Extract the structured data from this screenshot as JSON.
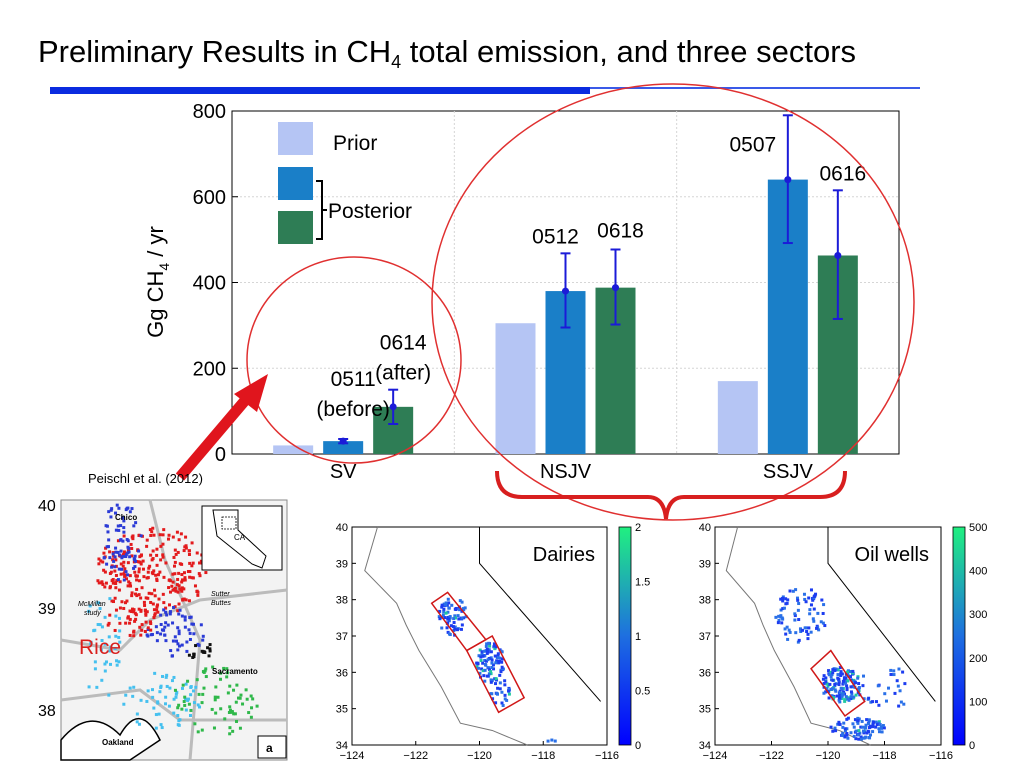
{
  "slide": {
    "title_main": "Preliminary Results in CH",
    "title_sub": "4",
    "title_rest": " total emission, and three sectors"
  },
  "chart_data": [
    {
      "type": "bar",
      "categories": [
        "SV",
        "NSJV",
        "SSJV"
      ],
      "ylabel_main": "Gg CH",
      "ylabel_sub": "4",
      "ylabel_rest": " / yr",
      "ylim": [
        0,
        800
      ],
      "yticks": [
        "0",
        "200",
        "400",
        "600",
        "800"
      ],
      "grid": true,
      "series": [
        {
          "name": "Prior",
          "values": [
            20,
            305,
            170
          ]
        },
        {
          "values": [
            30,
            380,
            640
          ],
          "err_low": [
            25,
            295,
            492
          ],
          "err_high": [
            35,
            468,
            790
          ]
        },
        {
          "values": [
            110,
            388,
            463
          ],
          "err_low": [
            70,
            302,
            315
          ],
          "err_high": [
            150,
            477,
            615
          ]
        }
      ],
      "bar_labels": [
        [
          "0511",
          "(before)"
        ],
        [
          "0614",
          "(after)"
        ],
        [
          "0512"
        ],
        [
          "0618"
        ],
        [
          "0507"
        ],
        [
          "0616"
        ]
      ],
      "legend": {
        "prior": "Prior",
        "posterior": "Posterior",
        "placement": "top-left"
      }
    },
    {
      "type": "heatmap",
      "title": "Dairies",
      "xticks": [
        "-124",
        "-122",
        "-120",
        "-118",
        "-116"
      ],
      "yticks": [
        "34",
        "35",
        "36",
        "37",
        "38",
        "39",
        "40"
      ],
      "colorbar_ticks": [
        "0",
        "0.5",
        "1",
        "1.5",
        "2"
      ]
    },
    {
      "type": "heatmap",
      "title": "Oil wells",
      "xticks": [
        "-124",
        "-122",
        "-120",
        "-118",
        "-116"
      ],
      "yticks": [
        "34",
        "35",
        "36",
        "37",
        "38",
        "39",
        "40"
      ],
      "colorbar_ticks": [
        "0",
        "100",
        "200",
        "300",
        "400",
        "500"
      ]
    }
  ],
  "annotations": {
    "citation": "Peischl et al. (2012)",
    "rice_label": "Rice"
  },
  "rice_map": {
    "yticks": [
      "40",
      "39",
      "38"
    ],
    "place_labels": [
      "Chico",
      "CA",
      "Sutter",
      "Buttes",
      "McMillan",
      "study",
      "Sacramento",
      "Oakland",
      "a"
    ]
  },
  "colors": {
    "prior": "#b5c5f4",
    "posterior_a": "#1a7fc8",
    "posterior_b": "#2e7d55",
    "error_bar": "#1b1bd8",
    "ellipse": "#e03030",
    "arrow": "#e0151d",
    "brace": "#d81f1f"
  }
}
